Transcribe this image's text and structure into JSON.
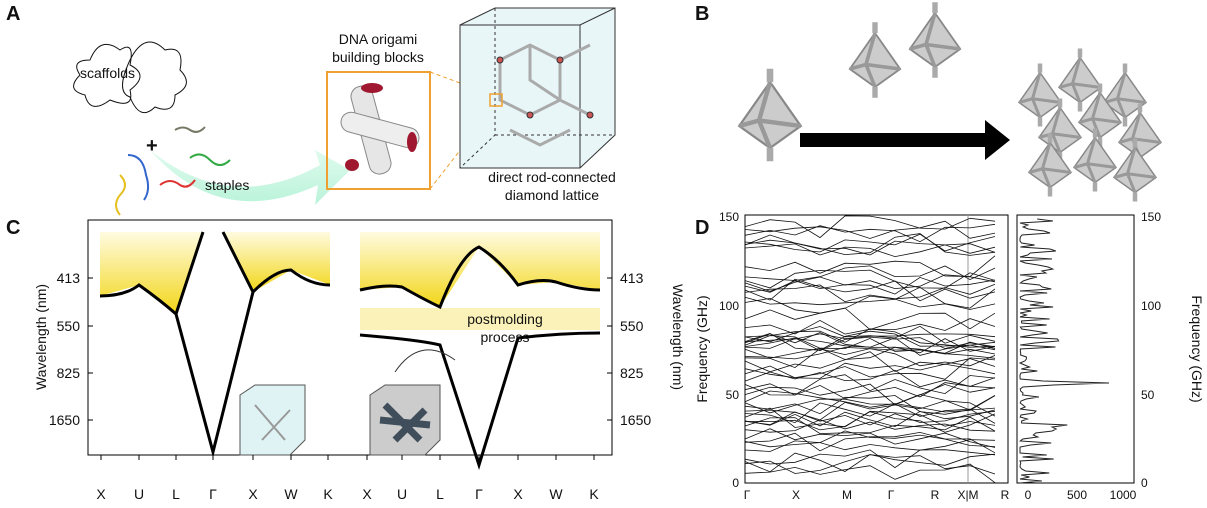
{
  "panel_a": {
    "label": "A",
    "scaffolds": "scaffolds",
    "plus": "+",
    "staples": "staples",
    "block_title": [
      "DNA origami",
      "building blocks"
    ],
    "lattice_caption": [
      "direct rod-connected",
      "diamond lattice"
    ]
  },
  "panel_b": {
    "label": "B"
  },
  "panel_c": {
    "label": "C",
    "y_label": "Wavelength (nm)",
    "y_ticks": [
      413,
      550,
      825,
      1650
    ],
    "x_ticks": [
      "X",
      "U",
      "L",
      "Γ",
      "X",
      "W",
      "K",
      "X",
      "U",
      "L",
      "Γ",
      "X",
      "W",
      "K"
    ],
    "note": [
      "postmolding",
      "process"
    ]
  },
  "panel_d": {
    "label": "D",
    "y_label": "Frequency (GHz)",
    "y_ticks": [
      0,
      50,
      100,
      150
    ],
    "x_ticks": [
      "Γ",
      "X",
      "M",
      "Γ",
      "R",
      "X|M",
      "R"
    ],
    "dos_ticks": [
      0,
      500,
      1000
    ]
  }
}
